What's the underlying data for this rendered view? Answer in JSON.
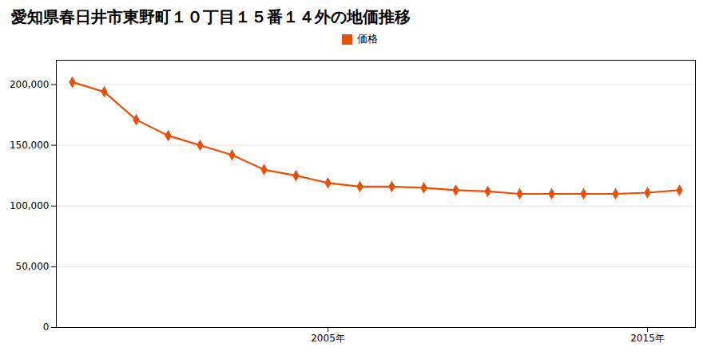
{
  "chart_data": {
    "type": "line",
    "title": "愛知県春日井市東野町１０丁目１５番１４外の地価推移",
    "x": [
      1997,
      1998,
      1999,
      2000,
      2001,
      2002,
      2003,
      2004,
      2005,
      2006,
      2007,
      2008,
      2009,
      2010,
      2011,
      2012,
      2013,
      2014,
      2015,
      2016
    ],
    "series": [
      {
        "name": "価格",
        "color": "#E8500A",
        "marker": "diamond",
        "values": [
          202000,
          194000,
          171000,
          158000,
          150000,
          142000,
          130000,
          125000,
          119000,
          116000,
          116000,
          115000,
          113000,
          112000,
          110000,
          110000,
          110000,
          110000,
          111000,
          113000
        ]
      }
    ],
    "xlim": [
      1996.5,
      2016.5
    ],
    "xticks": [
      {
        "value": 2005,
        "label": "2005年"
      },
      {
        "value": 2015,
        "label": "2015年"
      }
    ],
    "ylim": [
      0,
      220000
    ],
    "yticks": [
      0,
      {
        "value": 50000,
        "label": "50,000"
      },
      {
        "value": 100000,
        "label": "100,000"
      },
      {
        "value": 150000,
        "label": "150,000"
      },
      {
        "value": 200000,
        "label": "200,000"
      }
    ],
    "grid": true,
    "legend": "top"
  }
}
